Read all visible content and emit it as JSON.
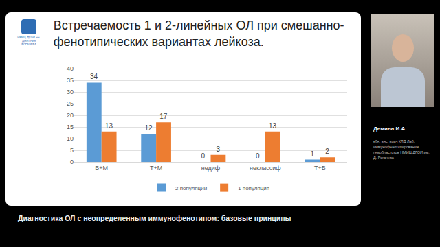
{
  "logo": {
    "text": "НМИЦ ДГОИ им. ДМИТРИЯ РОГАЧЕВА"
  },
  "chart_data": {
    "type": "bar",
    "title": "Встречаемость 1 и 2-линейных ОЛ при смешанно-\nфенотипических вариантах лейкоза.",
    "categories": [
      "В+М",
      "Т+М",
      "недиф",
      "неклассиф",
      "Т+В"
    ],
    "series": [
      {
        "name": "2 популяции",
        "color": "#5b9bd5",
        "values": [
          34,
          12,
          0,
          0,
          1
        ]
      },
      {
        "name": "1 популяция",
        "color": "#ed7d31",
        "values": [
          13,
          17,
          3,
          13,
          2
        ]
      }
    ],
    "ylim": [
      0,
      40
    ],
    "yticks": [
      0,
      5,
      10,
      15,
      20,
      25,
      30,
      35,
      40
    ],
    "grid": true,
    "data_labels": true,
    "legend": "bottom"
  },
  "speaker": {
    "name": "Демина И.А.",
    "description": [
      "кбн, внс, врач КЛД Лаб.",
      "иммунофенотипирования",
      "гемобластозов НМИЦ ДГОИ им.",
      "Д. Рогачева"
    ]
  },
  "caption": "Диагностика ОЛ с неопределенным иммунофенотипом: базовые принципы"
}
